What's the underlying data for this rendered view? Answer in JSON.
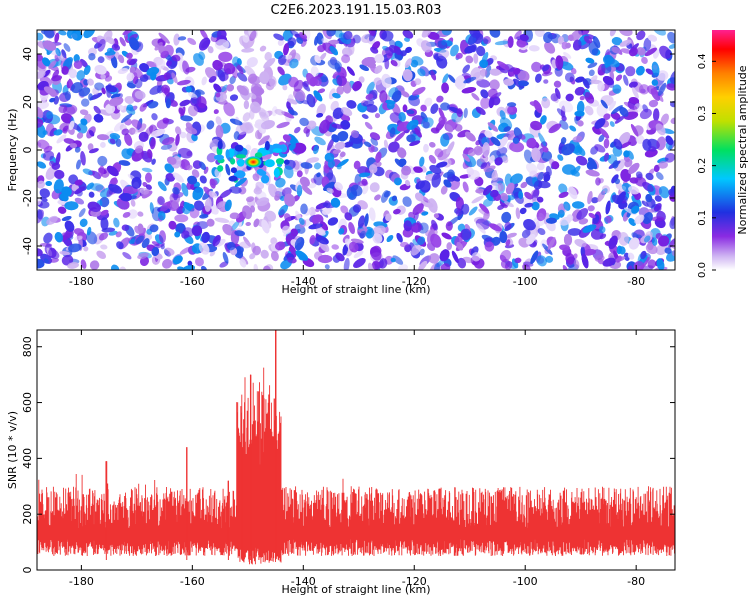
{
  "figure": {
    "title": "C2E6.2023.191.15.03.R03"
  },
  "chart_data": [
    {
      "type": "heatmap",
      "xlabel": "Height of straight line (km)",
      "ylabel": "Frequency (Hz)",
      "xlim": [
        -188,
        -73
      ],
      "ylim": [
        -50,
        50
      ],
      "x_ticks": [
        -180,
        -160,
        -140,
        -120,
        -100,
        -80
      ],
      "y_ticks": [
        -40,
        -20,
        0,
        20,
        40
      ],
      "colorbar": {
        "label": "Normalized spectral amplitude",
        "range": [
          0,
          0.46
        ],
        "ticks": [
          0.0,
          0.1,
          0.2,
          0.3,
          0.4
        ],
        "colors": [
          "#ffffff",
          "#cdb1f2",
          "#8a2be2",
          "#2030e0",
          "#00c8ff",
          "#00e060",
          "#e0e000",
          "#ff8000",
          "#ff0000",
          "#ff2090"
        ]
      },
      "background_band": {
        "x_range": [
          -151,
          -145
        ],
        "note": "low-amplitude vertical band"
      },
      "hotspot": {
        "x": -149,
        "y": -5,
        "peak_amplitude": 0.42
      }
    },
    {
      "type": "line",
      "xlabel": "Height of straight line (km)",
      "ylabel": "SNR (10 * v/v)",
      "xlim": [
        -188,
        -73
      ],
      "ylim": [
        0,
        860
      ],
      "x_ticks": [
        -180,
        -160,
        -140,
        -120,
        -100,
        -80
      ],
      "y_ticks": [
        0,
        200,
        400,
        600,
        800
      ],
      "color": "#ee3333",
      "baseline_mean": 150,
      "noise_range": [
        50,
        300
      ],
      "peaks": [
        {
          "x": -151,
          "y": 440
        },
        {
          "x": -149.5,
          "y": 700
        },
        {
          "x": -148,
          "y": 640
        },
        {
          "x": -146.5,
          "y": 560
        },
        {
          "x": -145,
          "y": 860
        },
        {
          "x": -175.5,
          "y": 390
        },
        {
          "x": -161,
          "y": 440
        },
        {
          "x": -153.5,
          "y": 320
        }
      ]
    }
  ]
}
